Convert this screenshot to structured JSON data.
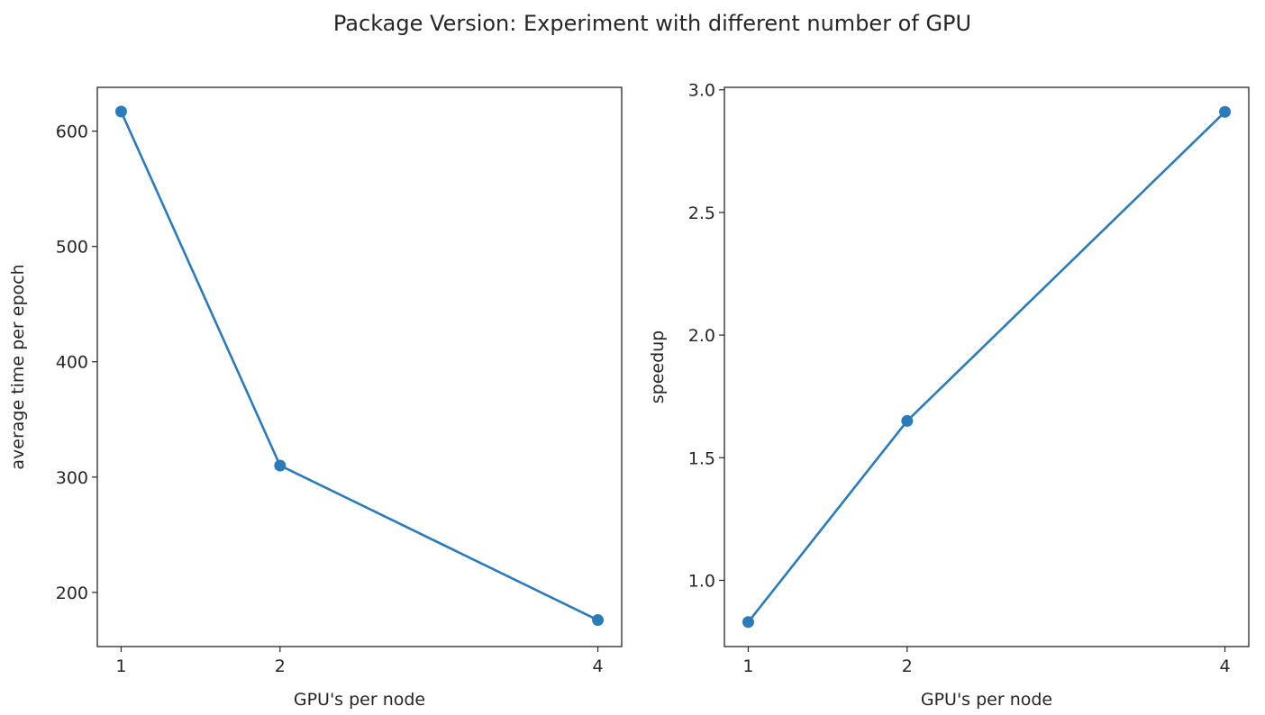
{
  "figure": {
    "title": "Package Version: Experiment with different number of GPU"
  },
  "colors": {
    "series": "#2b7bba",
    "axes": "#262626",
    "background": "#ffffff"
  },
  "chart_data": [
    {
      "type": "line",
      "xlabel": "GPU's per node",
      "ylabel": "average time per epoch",
      "x": [
        1,
        2,
        4
      ],
      "xticks": [
        1,
        2,
        4
      ],
      "xlim": [
        0.85,
        4.15
      ],
      "yticks": [
        200,
        300,
        400,
        500,
        600
      ],
      "ylim": [
        153,
        638
      ],
      "series": [
        {
          "values": [
            617,
            310,
            176
          ]
        }
      ],
      "markers": true,
      "grid": false
    },
    {
      "type": "line",
      "xlabel": "GPU's per node",
      "ylabel": "speedup",
      "x": [
        1,
        2,
        4
      ],
      "xticks": [
        1,
        2,
        4
      ],
      "xlim": [
        0.85,
        4.15
      ],
      "yticks": [
        1.0,
        1.5,
        2.0,
        2.5,
        3.0
      ],
      "ytick_labels": [
        "1.0",
        "1.5",
        "2.0",
        "2.5",
        "3.0"
      ],
      "ylim": [
        0.73,
        3.01
      ],
      "series": [
        {
          "values": [
            0.83,
            1.65,
            2.91
          ]
        }
      ],
      "markers": true,
      "grid": false
    }
  ]
}
